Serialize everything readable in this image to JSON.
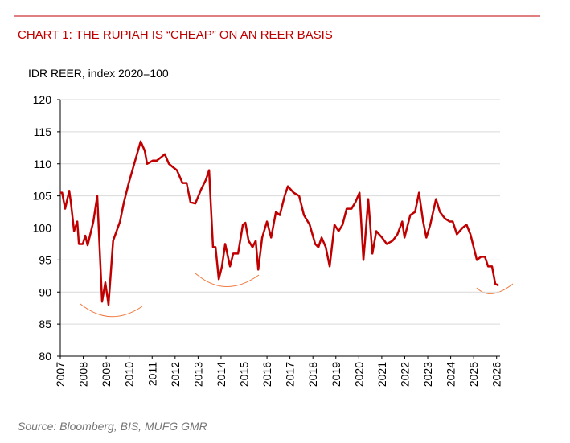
{
  "chart_data": {
    "type": "line",
    "title": "CHART 1: THE RUPIAH IS “CHEAP” ON AN REER BASIS",
    "y_axis_label": "IDR REER, index 2020=100",
    "source": "Source: Bloomberg, BIS, MUFG GMR",
    "x": [
      2007.0,
      2007.08,
      2007.21,
      2007.39,
      2007.46,
      2007.6,
      2007.74,
      2007.81,
      2007.98,
      2008.09,
      2008.19,
      2008.44,
      2008.61,
      2008.82,
      2008.96,
      2009.1,
      2009.3,
      2009.6,
      2009.77,
      2009.98,
      2010.22,
      2010.5,
      2010.68,
      2010.78,
      2011.03,
      2011.2,
      2011.38,
      2011.55,
      2011.73,
      2011.9,
      2012.08,
      2012.32,
      2012.5,
      2012.67,
      2012.88,
      2013.13,
      2013.34,
      2013.48,
      2013.55,
      2013.65,
      2013.76,
      2013.9,
      2014.04,
      2014.18,
      2014.39,
      2014.53,
      2014.74,
      2014.95,
      2015.06,
      2015.2,
      2015.37,
      2015.51,
      2015.62,
      2015.79,
      2016.0,
      2016.18,
      2016.39,
      2016.56,
      2016.77,
      2016.91,
      2017.16,
      2017.4,
      2017.61,
      2017.86,
      2018.1,
      2018.24,
      2018.38,
      2018.56,
      2018.73,
      2018.94,
      2019.12,
      2019.29,
      2019.47,
      2019.68,
      2019.85,
      2020.03,
      2020.2,
      2020.27,
      2020.41,
      2020.59,
      2020.76,
      2021.01,
      2021.22,
      2021.47,
      2021.68,
      2021.89,
      2021.99,
      2022.24,
      2022.45,
      2022.62,
      2022.8,
      2022.94,
      2023.11,
      2023.36,
      2023.53,
      2023.74,
      2023.95,
      2024.09,
      2024.27,
      2024.51,
      2024.69,
      2024.86,
      2025.0,
      2025.14,
      2025.32,
      2025.49,
      2025.63,
      2025.8,
      2025.94,
      2026.09
    ],
    "series": [
      {
        "name": "IDR REER",
        "color": "#c00000",
        "values": [
          105.5,
          105.5,
          103,
          105.8,
          104,
          99.5,
          101,
          97.5,
          97.5,
          98.8,
          97.3,
          101,
          105,
          88.5,
          91.5,
          88,
          98,
          101,
          104,
          107,
          110,
          113.5,
          112,
          110,
          110.5,
          110.5,
          111,
          111.5,
          110,
          109.5,
          109,
          107,
          107,
          104,
          103.8,
          106,
          107.5,
          109,
          104,
          97,
          97,
          92,
          94,
          97.5,
          94,
          96,
          96,
          100.5,
          100.8,
          98,
          97,
          98,
          93.5,
          98.5,
          101,
          98.5,
          102.5,
          102,
          105,
          106.5,
          105.5,
          105,
          102,
          100.5,
          97.5,
          97,
          98.5,
          97,
          94,
          100.5,
          99.5,
          100.5,
          103,
          103,
          104,
          105.5,
          95,
          98,
          104.5,
          96,
          99.5,
          98.5,
          97.5,
          98,
          99,
          101,
          98.5,
          102,
          102.5,
          105.5,
          101,
          98.5,
          100.5,
          104.5,
          102.5,
          101.5,
          101,
          101,
          99,
          100,
          100.5,
          99,
          97,
          95,
          95.5,
          95.5,
          94,
          94,
          91.3,
          91
        ]
      }
    ],
    "xlim": [
      2007,
      2026.15
    ],
    "xticks": [
      2007,
      2008,
      2009,
      2010,
      2011,
      2012,
      2013,
      2014,
      2015,
      2016,
      2017,
      2018,
      2019,
      2020,
      2021,
      2022,
      2023,
      2024,
      2025,
      2026
    ],
    "ylim": [
      80,
      120
    ],
    "yticks": [
      80,
      85,
      90,
      95,
      100,
      105,
      110,
      115,
      120
    ],
    "grid": true
  }
}
